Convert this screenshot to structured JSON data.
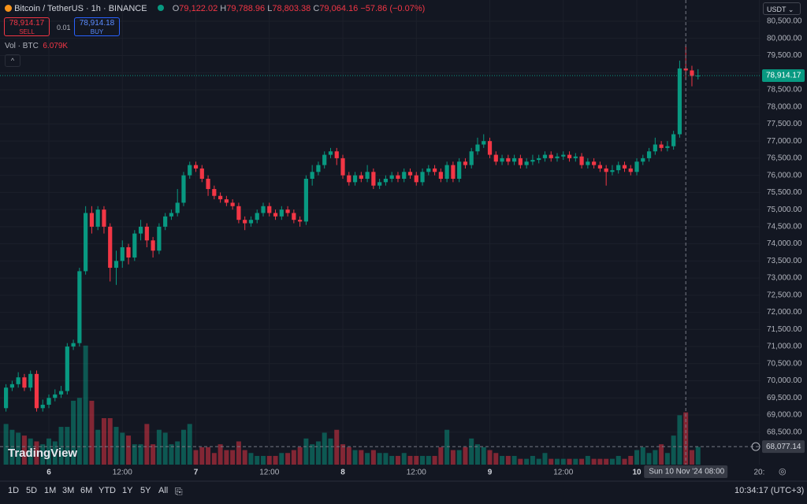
{
  "header": {
    "symbol": "Bitcoin / TetherUS · 1h · BINANCE",
    "o_label": "O",
    "open": "79,122.02",
    "h_label": "H",
    "high": "79,788.96",
    "l_label": "L",
    "low": "78,803.38",
    "c_label": "C",
    "close": "79,064.16",
    "change": "−57.86 (−0.07%)",
    "sell_price": "78,914.17",
    "sell": "SELL",
    "spread": "0.01",
    "buy_price": "78,914.18",
    "buy": "BUY",
    "volume_label": "Vol · BTC",
    "volume_value": "6.079K"
  },
  "currency": "USDT",
  "watermark": "TradingView",
  "toolbar": {
    "ranges": [
      "1D",
      "5D",
      "1M",
      "3M",
      "6M",
      "YTD",
      "1Y",
      "5Y",
      "All"
    ],
    "clock": "10:34:17 (UTC+3)"
  },
  "chart_data": {
    "type": "candlestick",
    "up_color": "#089981",
    "down_color": "#f23645",
    "grid": true,
    "xlim": [
      -7.98,
      116.2
    ],
    "ylim": [
      67551,
      81121
    ],
    "volume_lim": [
      0,
      160000
    ],
    "xticks": [
      {
        "value": 0,
        "label": "6"
      },
      {
        "value": 12,
        "label": "12:00"
      },
      {
        "value": 24,
        "label": "7"
      },
      {
        "value": 36,
        "label": "12:00"
      },
      {
        "value": 48,
        "label": "8"
      },
      {
        "value": 60,
        "label": "12:00"
      },
      {
        "value": 72,
        "label": "9"
      },
      {
        "value": 84,
        "label": "12:00"
      },
      {
        "value": 96,
        "label": "10"
      },
      {
        "value": 116,
        "label": "20:"
      }
    ],
    "yticks": [
      {
        "value": 68500,
        "label": "68,500.00"
      },
      {
        "value": 69000,
        "label": "69,000.00"
      },
      {
        "value": 69500,
        "label": "69,500.00"
      },
      {
        "value": 70000,
        "label": "70,000.00"
      },
      {
        "value": 70500,
        "label": "70,500.00"
      },
      {
        "value": 71000,
        "label": "71,000.00"
      },
      {
        "value": 71500,
        "label": "71,500.00"
      },
      {
        "value": 72000,
        "label": "72,000.00"
      },
      {
        "value": 72500,
        "label": "72,500.00"
      },
      {
        "value": 73000,
        "label": "73,000.00"
      },
      {
        "value": 73500,
        "label": "73,500.00"
      },
      {
        "value": 74000,
        "label": "74,000.00"
      },
      {
        "value": 74500,
        "label": "74,500.00"
      },
      {
        "value": 75000,
        "label": "75,000.00"
      },
      {
        "value": 75500,
        "label": "75,500.00"
      },
      {
        "value": 76000,
        "label": "76,000.00"
      },
      {
        "value": 76500,
        "label": "76,500.00"
      },
      {
        "value": 77000,
        "label": "77,000.00"
      },
      {
        "value": 77500,
        "label": "77,500.00"
      },
      {
        "value": 78000,
        "label": "78,000.00"
      },
      {
        "value": 78500,
        "label": "78,500.00"
      },
      {
        "value": 79000,
        "label": "79,000.00"
      },
      {
        "value": 79500,
        "label": "79,500.00"
      },
      {
        "value": 80000,
        "label": "80,000.00"
      },
      {
        "value": 80500,
        "label": "80,500.00"
      }
    ],
    "x": [
      -7,
      -6,
      -5,
      -4,
      -3,
      -2,
      -1,
      0,
      1,
      2,
      3,
      4,
      5,
      6,
      7,
      8,
      9,
      10,
      11,
      12,
      13,
      14,
      15,
      16,
      17,
      18,
      19,
      20,
      21,
      22,
      23,
      24,
      25,
      26,
      27,
      28,
      29,
      30,
      31,
      32,
      33,
      34,
      35,
      36,
      37,
      38,
      39,
      40,
      41,
      42,
      43,
      44,
      45,
      46,
      47,
      48,
      49,
      50,
      51,
      52,
      53,
      54,
      55,
      56,
      57,
      58,
      59,
      60,
      61,
      62,
      63,
      64,
      65,
      66,
      67,
      68,
      69,
      70,
      71,
      72,
      73,
      74,
      75,
      76,
      77,
      78,
      79,
      80,
      81,
      82,
      83,
      84,
      85,
      86,
      87,
      88,
      89,
      90,
      91,
      92,
      93,
      94,
      95,
      96,
      97,
      98,
      99,
      100,
      101,
      102,
      103,
      104,
      105,
      106
    ],
    "open": [
      69200,
      69800,
      69900,
      70100,
      69800,
      70200,
      69200,
      69300,
      69500,
      69600,
      69700,
      71000,
      71100,
      73200,
      74900,
      74500,
      75000,
      74500,
      73300,
      73500,
      73900,
      73600,
      74300,
      74500,
      74100,
      73800,
      74500,
      74800,
      74900,
      75200,
      76000,
      76300,
      76200,
      75900,
      75600,
      75400,
      75300,
      75200,
      75100,
      74700,
      74600,
      74700,
      74900,
      75100,
      74900,
      74800,
      75000,
      74900,
      74700,
      74650,
      75900,
      76100,
      76300,
      76600,
      76700,
      76500,
      76000,
      75800,
      76000,
      75900,
      76100,
      75700,
      75800,
      75900,
      76000,
      75900,
      76100,
      76000,
      75800,
      76100,
      76200,
      76100,
      75900,
      76300,
      75900,
      76400,
      76300,
      76700,
      76900,
      77000,
      76600,
      76400,
      76500,
      76400,
      76500,
      76300,
      76400,
      76450,
      76500,
      76600,
      76500,
      76550,
      76600,
      76500,
      76550,
      76300,
      76400,
      76300,
      76200,
      76100,
      76150,
      76300,
      76200,
      76100,
      76400,
      76500,
      76700,
      76900,
      76800,
      76850,
      77200,
      79122.02,
      79064.16,
      78900
    ],
    "high": [
      69900,
      70000,
      70250,
      70200,
      70300,
      70300,
      69450,
      69600,
      69750,
      69850,
      71100,
      71200,
      73300,
      75100,
      75100,
      75100,
      75100,
      74600,
      73800,
      74100,
      74000,
      74400,
      74700,
      74600,
      74200,
      74600,
      74900,
      75000,
      75600,
      76100,
      76400,
      76400,
      76300,
      76000,
      75700,
      75500,
      75400,
      75300,
      75200,
      74800,
      74800,
      75000,
      75200,
      75200,
      75000,
      75100,
      75100,
      75000,
      74800,
      76000,
      76300,
      76400,
      76700,
      76800,
      76800,
      76600,
      76100,
      76100,
      76100,
      76300,
      76200,
      75900,
      76000,
      76100,
      76100,
      76200,
      76200,
      76100,
      76200,
      76300,
      76300,
      76200,
      76400,
      76400,
      76500,
      76500,
      76800,
      77100,
      77200,
      77100,
      76700,
      76600,
      76600,
      76600,
      76600,
      76500,
      76600,
      76600,
      76700,
      76700,
      76650,
      76700,
      76700,
      76650,
      76650,
      76500,
      76500,
      76400,
      76300,
      76300,
      76400,
      76400,
      76300,
      76500,
      76600,
      76800,
      77100,
      77000,
      77000,
      77300,
      79350,
      79788.96,
      79200,
      79100
    ],
    "low": [
      69100,
      69700,
      69800,
      69700,
      69700,
      69100,
      69100,
      69200,
      69400,
      69500,
      69600,
      70900,
      71000,
      73100,
      74300,
      74400,
      74300,
      72900,
      72800,
      73300,
      73400,
      73500,
      74100,
      73900,
      73600,
      73700,
      74400,
      74700,
      74800,
      75100,
      75900,
      76100,
      75800,
      75400,
      75300,
      75200,
      75100,
      75000,
      74600,
      74400,
      74500,
      74600,
      74800,
      74800,
      74700,
      74700,
      74800,
      74600,
      74500,
      74550,
      75700,
      76000,
      76200,
      76500,
      76300,
      75900,
      75700,
      75700,
      75800,
      75800,
      75600,
      75600,
      75700,
      75800,
      75800,
      75800,
      75900,
      75700,
      75700,
      76000,
      76000,
      75800,
      75800,
      75800,
      75800,
      76200,
      76200,
      76600,
      76800,
      76500,
      76300,
      76300,
      76300,
      76300,
      76200,
      76200,
      76300,
      76350,
      76400,
      76400,
      76400,
      76450,
      76400,
      76400,
      76200,
      76200,
      76200,
      76100,
      75700,
      76000,
      76050,
      76100,
      76000,
      76000,
      76300,
      76400,
      76600,
      76700,
      76700,
      76750,
      77100,
      78803.38,
      78600,
      78800
    ],
    "close": [
      69800,
      69900,
      70100,
      69800,
      70200,
      69200,
      69300,
      69500,
      69600,
      69700,
      71000,
      71100,
      73200,
      74900,
      74500,
      75000,
      74500,
      73300,
      73500,
      73900,
      73600,
      74300,
      74500,
      74100,
      73800,
      74500,
      74800,
      74900,
      75200,
      76000,
      76300,
      76200,
      75900,
      75600,
      75400,
      75300,
      75200,
      75100,
      74700,
      74600,
      74700,
      74900,
      75100,
      74900,
      74800,
      75000,
      74900,
      74700,
      74650,
      75900,
      76100,
      76300,
      76600,
      76700,
      76500,
      76000,
      75800,
      76000,
      75900,
      76100,
      75700,
      75800,
      75900,
      76000,
      75900,
      76100,
      76000,
      75800,
      76100,
      76200,
      76100,
      75900,
      76300,
      75900,
      76400,
      76300,
      76700,
      76900,
      77000,
      76600,
      76400,
      76500,
      76400,
      76500,
      76300,
      76400,
      76450,
      76500,
      76600,
      76500,
      76550,
      76600,
      76500,
      76550,
      76300,
      76400,
      76300,
      76200,
      76100,
      76150,
      76300,
      76200,
      76100,
      76400,
      76500,
      76700,
      76900,
      76800,
      76850,
      77200,
      79122.02,
      79064.16,
      78900,
      78914.17
    ],
    "volume": [
      14000,
      12000,
      11000,
      10000,
      9000,
      8000,
      7000,
      9000,
      8000,
      13000,
      13000,
      22000,
      23000,
      41000,
      22000,
      12000,
      16000,
      16000,
      13000,
      11000,
      10000,
      7000,
      7000,
      14000,
      7000,
      12000,
      11000,
      7000,
      8000,
      12000,
      14000,
      5000,
      6000,
      6000,
      4000,
      7000,
      5000,
      5000,
      8000,
      5000,
      4000,
      3000,
      3000,
      3000,
      3000,
      4000,
      4000,
      5000,
      6000,
      9000,
      7000,
      8000,
      11000,
      9000,
      12000,
      7000,
      6000,
      5000,
      5000,
      4000,
      5000,
      4000,
      4000,
      3000,
      3000,
      4000,
      3000,
      3000,
      3000,
      3000,
      3000,
      6000,
      12000,
      5000,
      5000,
      6000,
      9000,
      7000,
      6000,
      5000,
      4000,
      3000,
      3000,
      3000,
      2000,
      2000,
      3000,
      2000,
      4000,
      2000,
      2000,
      2000,
      2000,
      2000,
      2000,
      3000,
      2000,
      2000,
      2000,
      2000,
      3000,
      2000,
      3000,
      5000,
      6000,
      4000,
      5000,
      7000,
      4000,
      10000,
      17000,
      18000,
      5000,
      6079
    ],
    "last_price": {
      "value": 78914.17,
      "label": "78,914.17"
    },
    "crosshair": {
      "price": {
        "value": 68077.14,
        "label": "68,077.14"
      },
      "time": {
        "value": 104,
        "label": "Sun 10 Nov '24"
      },
      "time_of_day": "08:00"
    }
  }
}
